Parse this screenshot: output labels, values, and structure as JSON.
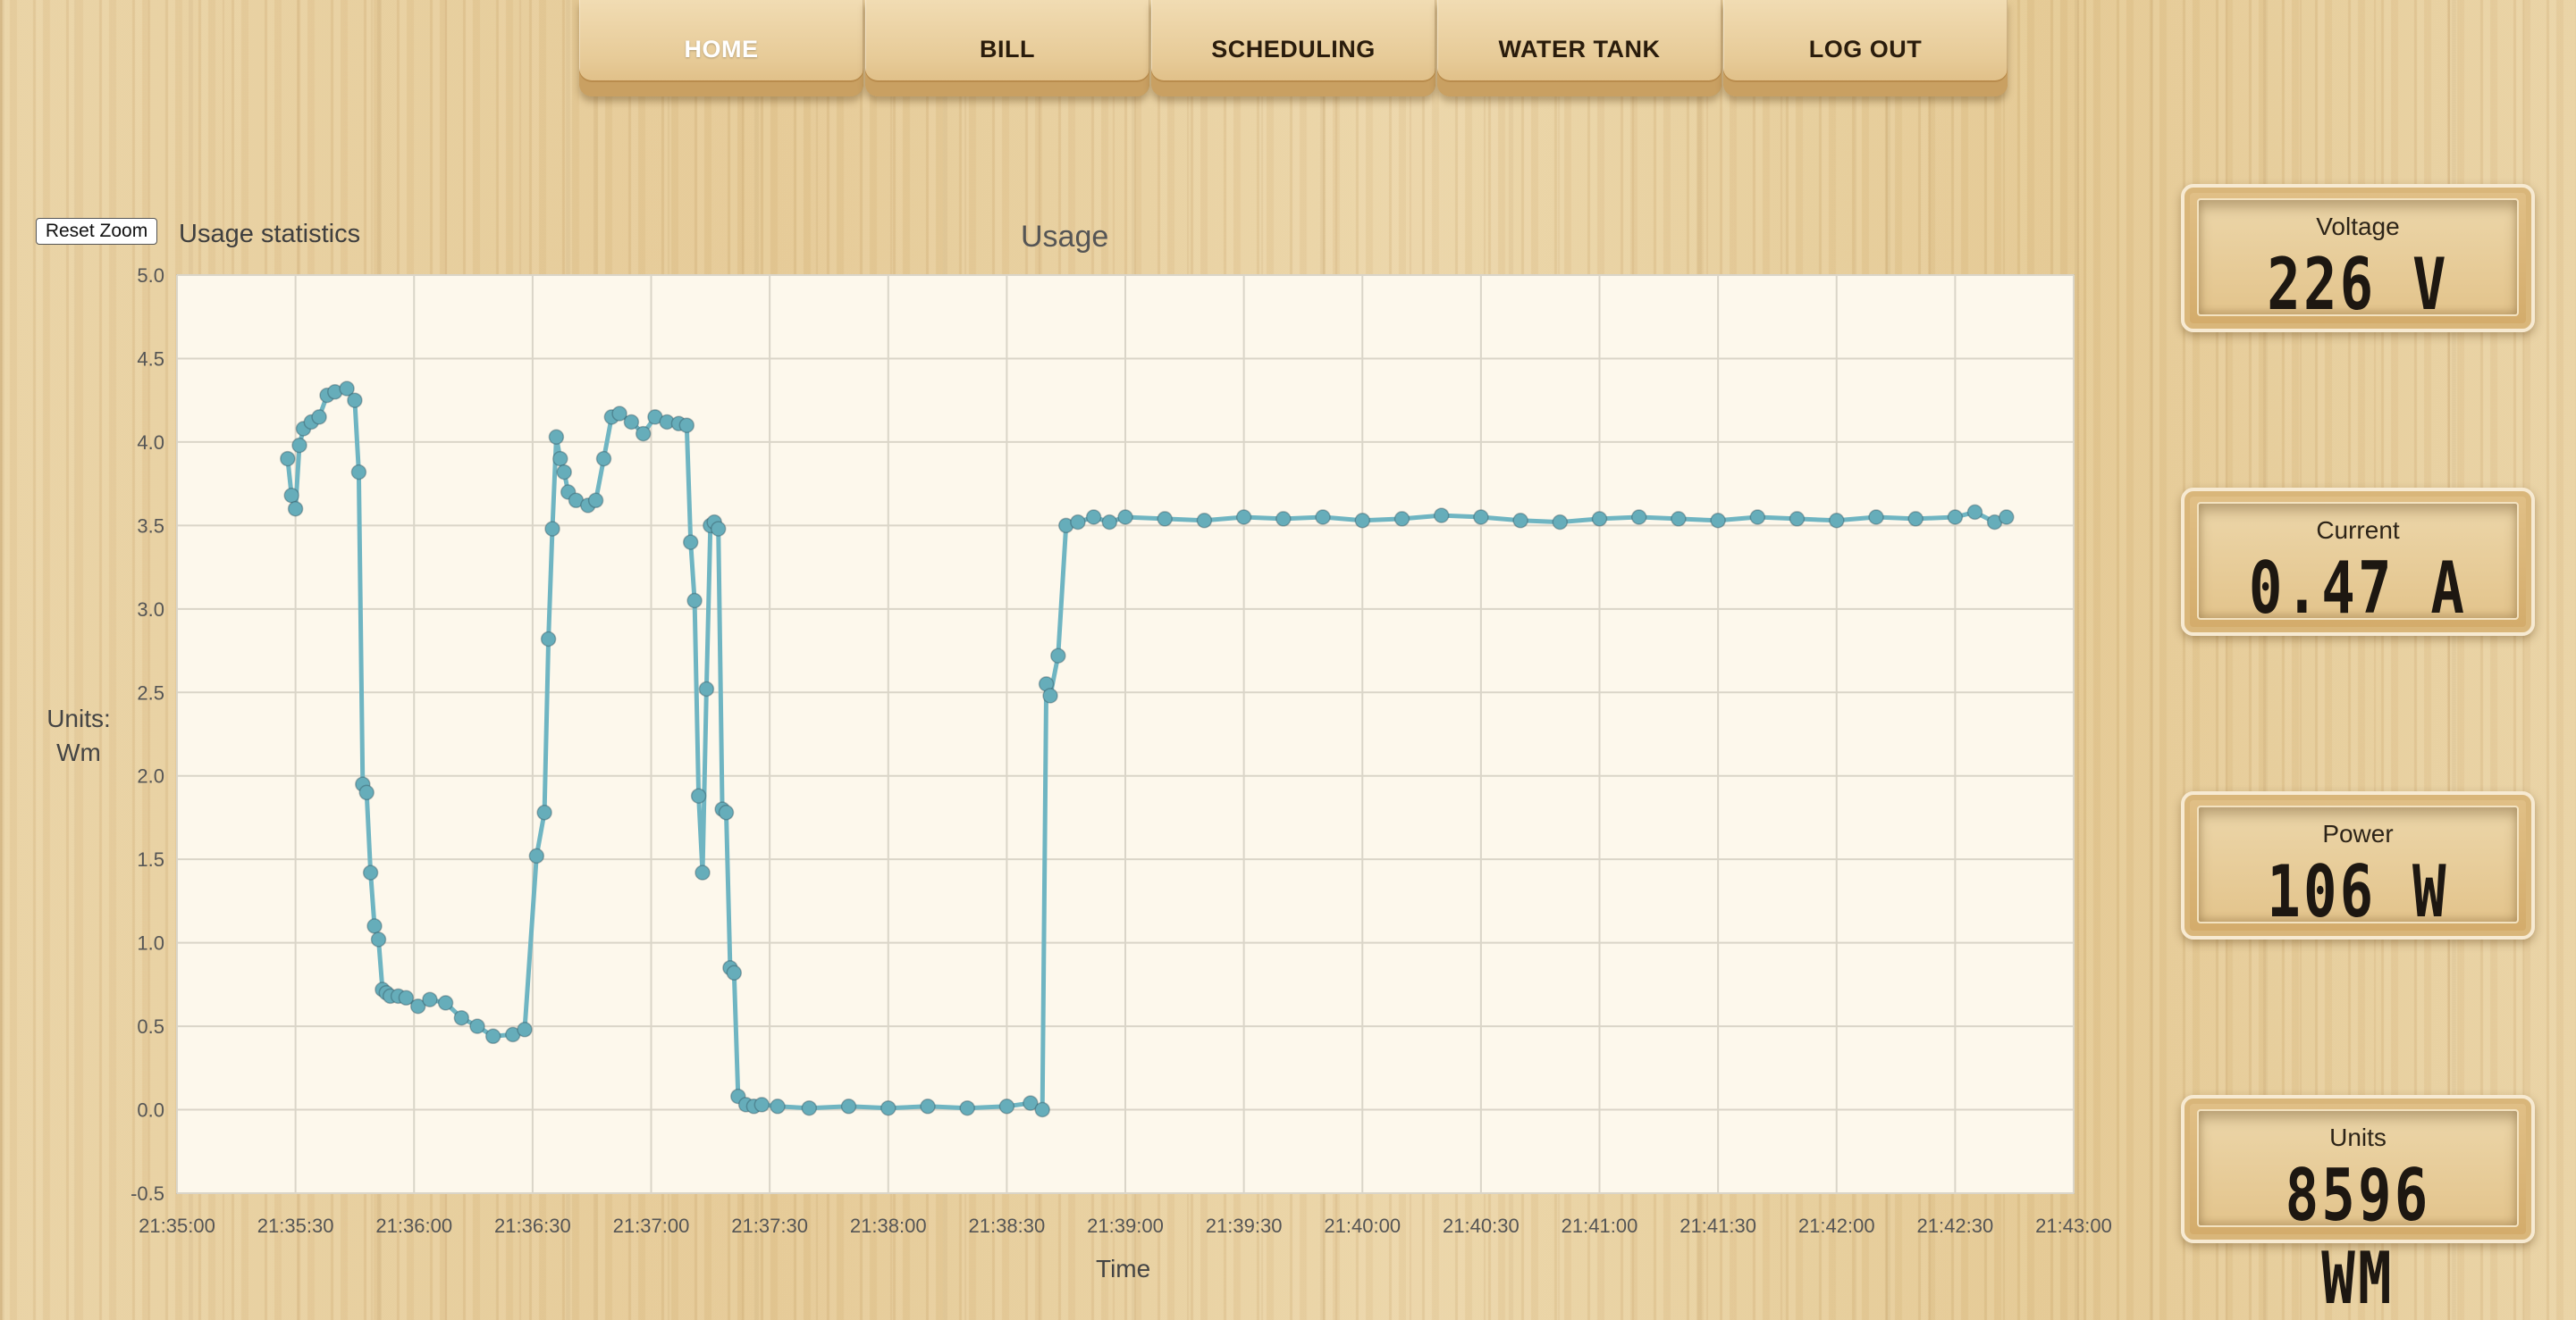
{
  "nav": {
    "items": [
      {
        "label": "HOME",
        "active": true
      },
      {
        "label": "BILL",
        "active": false
      },
      {
        "label": "SCHEDULING",
        "active": false
      },
      {
        "label": "WATER TANK",
        "active": false
      },
      {
        "label": "LOG OUT",
        "active": false
      }
    ]
  },
  "chart_panel": {
    "reset_zoom_label": "Reset Zoom",
    "section_label": "Usage statistics"
  },
  "meters": [
    {
      "label": "Voltage",
      "value": "226 V"
    },
    {
      "label": "Current",
      "value": "0.47 A"
    },
    {
      "label": "Power",
      "value": "106 W"
    },
    {
      "label": "Units",
      "value": "8596 WM"
    }
  ],
  "colors": {
    "series": "#6fb5c2",
    "series_marker": "#66adba",
    "plot_background": "#fdf8ec",
    "grid": "#dad5c8",
    "active_tab_text": "#ffffff"
  },
  "chart_data": {
    "type": "line",
    "title": "Usage",
    "xlabel": "Time",
    "ylabel_lines": [
      "Units:",
      "Wm"
    ],
    "ylim": [
      -0.5,
      5.0
    ],
    "xlim": [
      "21:35:00",
      "21:43:00"
    ],
    "yticks": [
      "-0.5",
      "0.0",
      "0.5",
      "1.0",
      "1.5",
      "2.0",
      "2.5",
      "3.0",
      "3.5",
      "4.0",
      "4.5",
      "5.0"
    ],
    "xticks": [
      "21:35:00",
      "21:35:30",
      "21:36:00",
      "21:36:30",
      "21:37:00",
      "21:37:30",
      "21:38:00",
      "21:38:30",
      "21:39:00",
      "21:39:30",
      "21:40:00",
      "21:40:30",
      "21:41:00",
      "21:41:30",
      "21:42:00",
      "21:42:30",
      "21:43:00"
    ],
    "grid": true,
    "series": [
      {
        "x": [
          "21:35:28",
          "21:35:29",
          "21:35:30",
          "21:35:31",
          "21:35:32",
          "21:35:34",
          "21:35:36",
          "21:35:38",
          "21:35:40",
          "21:35:43",
          "21:35:45",
          "21:35:46",
          "21:35:47",
          "21:35:48",
          "21:35:49",
          "21:35:50",
          "21:35:51",
          "21:35:52",
          "21:35:53",
          "21:35:54",
          "21:35:56",
          "21:35:58",
          "21:36:01",
          "21:36:04",
          "21:36:08",
          "21:36:12",
          "21:36:16",
          "21:36:20",
          "21:36:25",
          "21:36:28",
          "21:36:31",
          "21:36:33",
          "21:36:34",
          "21:36:35",
          "21:36:36",
          "21:36:37",
          "21:36:38",
          "21:36:39",
          "21:36:41",
          "21:36:44",
          "21:36:46",
          "21:36:48",
          "21:36:50",
          "21:36:52",
          "21:36:55",
          "21:36:58",
          "21:37:01",
          "21:37:04",
          "21:37:07",
          "21:37:09",
          "21:37:10",
          "21:37:11",
          "21:37:12",
          "21:37:13",
          "21:37:14",
          "21:37:15",
          "21:37:16",
          "21:37:17",
          "21:37:18",
          "21:37:19",
          "21:37:20",
          "21:37:21",
          "21:37:22",
          "21:37:24",
          "21:37:26",
          "21:37:28",
          "21:37:32",
          "21:37:40",
          "21:37:50",
          "21:38:00",
          "21:38:10",
          "21:38:20",
          "21:38:30",
          "21:38:36",
          "21:38:39",
          "21:38:40",
          "21:38:41",
          "21:38:43",
          "21:38:45",
          "21:38:48",
          "21:38:52",
          "21:38:56",
          "21:39:00",
          "21:39:10",
          "21:39:20",
          "21:39:30",
          "21:39:40",
          "21:39:50",
          "21:40:00",
          "21:40:10",
          "21:40:20",
          "21:40:30",
          "21:40:40",
          "21:40:50",
          "21:41:00",
          "21:41:10",
          "21:41:20",
          "21:41:30",
          "21:41:40",
          "21:41:50",
          "21:42:00",
          "21:42:10",
          "21:42:20",
          "21:42:30",
          "21:42:35",
          "21:42:40",
          "21:42:43"
        ],
        "y": [
          3.9,
          3.68,
          3.6,
          3.98,
          4.08,
          4.12,
          4.15,
          4.28,
          4.3,
          4.32,
          4.25,
          3.82,
          1.95,
          1.9,
          1.42,
          1.1,
          1.02,
          0.72,
          0.7,
          0.68,
          0.68,
          0.67,
          0.62,
          0.66,
          0.64,
          0.55,
          0.5,
          0.44,
          0.45,
          0.48,
          1.52,
          1.78,
          2.82,
          3.48,
          4.03,
          3.9,
          3.82,
          3.7,
          3.65,
          3.62,
          3.65,
          3.9,
          4.15,
          4.17,
          4.12,
          4.05,
          4.15,
          4.12,
          4.11,
          4.1,
          3.4,
          3.05,
          1.88,
          1.42,
          2.52,
          3.5,
          3.52,
          3.48,
          1.8,
          1.78,
          0.85,
          0.82,
          0.08,
          0.03,
          0.02,
          0.03,
          0.02,
          0.01,
          0.02,
          0.01,
          0.02,
          0.01,
          0.02,
          0.04,
          0.0,
          2.55,
          2.48,
          2.72,
          3.5,
          3.52,
          3.55,
          3.52,
          3.55,
          3.54,
          3.53,
          3.55,
          3.54,
          3.55,
          3.53,
          3.54,
          3.56,
          3.55,
          3.53,
          3.52,
          3.54,
          3.55,
          3.54,
          3.53,
          3.55,
          3.54,
          3.53,
          3.55,
          3.54,
          3.55,
          3.58,
          3.52,
          3.55
        ]
      }
    ]
  }
}
